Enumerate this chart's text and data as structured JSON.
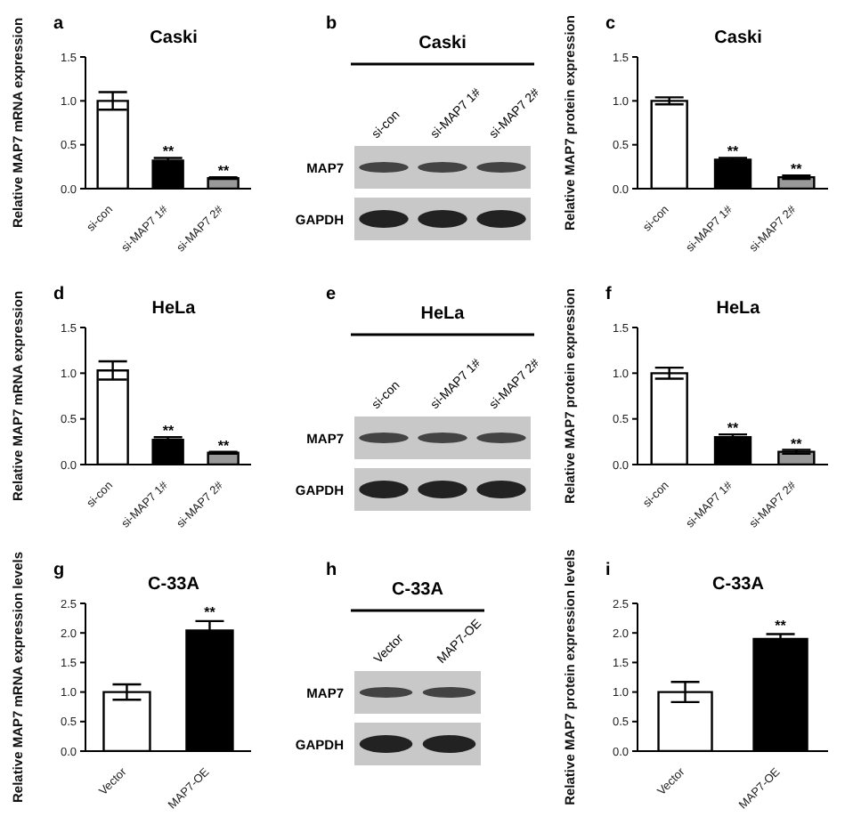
{
  "chart_data": [
    {
      "type": "bar",
      "title": "Caski",
      "ylabel": "Relative MAP7 mRNA expression",
      "categories": [
        "si-con",
        "si-MAP7 1#",
        "si-MAP7 2#"
      ],
      "values": [
        1.0,
        0.32,
        0.12
      ],
      "errors": [
        0.1,
        0.03,
        0.01
      ],
      "colors": [
        "#ffffff",
        "#000000",
        "#999999"
      ],
      "ylim": [
        0,
        1.5
      ],
      "yticks": [
        {
          "value": 0,
          "label": "0.0"
        },
        {
          "value": 0.5,
          "label": "0.5"
        },
        {
          "value": 1,
          "label": "1.0"
        },
        {
          "value": 1.5,
          "label": "1.5"
        }
      ],
      "annotations": [
        "a",
        {
          "text": "**",
          "x": "si-MAP7 1#",
          "y": 0.37
        },
        {
          "text": "**",
          "x": "si-MAP7 2#",
          "y": 0.15
        }
      ]
    },
    {
      "type": "other",
      "title": "Caski",
      "categories": [
        "si-con",
        "si-MAP7 1#",
        "si-MAP7 2#"
      ],
      "annotations": [
        "b",
        "MAP7",
        "GAPDH"
      ]
    },
    {
      "type": "bar",
      "title": "Caski",
      "ylabel": "Relative MAP7 protein expression",
      "categories": [
        "si-con",
        "si-MAP7 1#",
        "si-MAP7 2#"
      ],
      "values": [
        1.0,
        0.33,
        0.13
      ],
      "errors": [
        0.04,
        0.02,
        0.02
      ],
      "colors": [
        "#ffffff",
        "#000000",
        "#999999"
      ],
      "ylim": [
        0,
        1.5
      ],
      "yticks": [
        {
          "value": 0,
          "label": "0.0"
        },
        {
          "value": 0.5,
          "label": "0.5"
        },
        {
          "value": 1,
          "label": "1.0"
        },
        {
          "value": 1.5,
          "label": "1.5"
        }
      ],
      "annotations": [
        "c",
        {
          "text": "**",
          "x": "si-MAP7 1#",
          "y": 0.37
        },
        {
          "text": "**",
          "x": "si-MAP7 2#",
          "y": 0.17
        }
      ]
    },
    {
      "type": "bar",
      "title": "HeLa",
      "ylabel": "Relative MAP7 mRNA expression",
      "categories": [
        "si-con",
        "si-MAP7 1#",
        "si-MAP7 2#"
      ],
      "values": [
        1.03,
        0.27,
        0.13
      ],
      "errors": [
        0.1,
        0.03,
        0.01
      ],
      "colors": [
        "#ffffff",
        "#000000",
        "#999999"
      ],
      "ylim": [
        0,
        1.5
      ],
      "yticks": [
        {
          "value": 0,
          "label": "0.0"
        },
        {
          "value": 0.5,
          "label": "0.5"
        },
        {
          "value": 1,
          "label": "1.0"
        },
        {
          "value": 1.5,
          "label": "1.5"
        }
      ],
      "annotations": [
        "d",
        {
          "text": "**",
          "x": "si-MAP7 1#",
          "y": 0.32
        },
        {
          "text": "**",
          "x": "si-MAP7 2#",
          "y": 0.16
        }
      ]
    },
    {
      "type": "other",
      "title": "HeLa",
      "categories": [
        "si-con",
        "si-MAP7 1#",
        "si-MAP7 2#"
      ],
      "annotations": [
        "e",
        "MAP7",
        "GAPDH"
      ]
    },
    {
      "type": "bar",
      "title": "HeLa",
      "ylabel": "Relative MAP7 protein expression",
      "categories": [
        "si-con",
        "si-MAP7 1#",
        "si-MAP7 2#"
      ],
      "values": [
        1.0,
        0.3,
        0.14
      ],
      "errors": [
        0.06,
        0.03,
        0.02
      ],
      "colors": [
        "#ffffff",
        "#000000",
        "#999999"
      ],
      "ylim": [
        0,
        1.5
      ],
      "yticks": [
        {
          "value": 0,
          "label": "0.0"
        },
        {
          "value": 0.5,
          "label": "0.5"
        },
        {
          "value": 1,
          "label": "1.0"
        },
        {
          "value": 1.5,
          "label": "1.5"
        }
      ],
      "annotations": [
        "f",
        {
          "text": "**",
          "x": "si-MAP7 1#",
          "y": 0.35
        },
        {
          "text": "**",
          "x": "si-MAP7 2#",
          "y": 0.18
        }
      ]
    },
    {
      "type": "bar",
      "title": "C-33A",
      "ylabel": "Relative MAP7 mRNA expression levels",
      "categories": [
        "Vector",
        "MAP7-OE"
      ],
      "values": [
        1.0,
        2.04
      ],
      "errors": [
        0.13,
        0.16
      ],
      "colors": [
        "#ffffff",
        "#000000"
      ],
      "ylim": [
        0,
        2.5
      ],
      "yticks": [
        {
          "value": 0,
          "label": "0.0"
        },
        {
          "value": 0.5,
          "label": "0.5"
        },
        {
          "value": 1,
          "label": "1.0"
        },
        {
          "value": 1.5,
          "label": "1.5"
        },
        {
          "value": 2,
          "label": "2.0"
        },
        {
          "value": 2.5,
          "label": "2.5"
        }
      ],
      "annotations": [
        "g",
        {
          "text": "**",
          "x": "MAP7-OE",
          "y": 2.27
        }
      ]
    },
    {
      "type": "other",
      "title": "C-33A",
      "categories": [
        "Vector",
        "MAP7-OE"
      ],
      "annotations": [
        "h",
        "MAP7",
        "GAPDH"
      ]
    },
    {
      "type": "bar",
      "title": "C-33A",
      "ylabel": "Relative MAP7 protein expression levels",
      "categories": [
        "Vector",
        "MAP7-OE"
      ],
      "values": [
        1.0,
        1.9
      ],
      "errors": [
        0.17,
        0.08
      ],
      "colors": [
        "#ffffff",
        "#000000"
      ],
      "ylim": [
        0,
        2.5
      ],
      "yticks": [
        {
          "value": 0,
          "label": "0.0"
        },
        {
          "value": 0.5,
          "label": "0.5"
        },
        {
          "value": 1,
          "label": "1.0"
        },
        {
          "value": 1.5,
          "label": "1.5"
        },
        {
          "value": 2,
          "label": "2.0"
        },
        {
          "value": 2.5,
          "label": "2.5"
        }
      ],
      "annotations": [
        "i",
        {
          "text": "**",
          "x": "MAP7-OE",
          "y": 2.05
        }
      ]
    }
  ]
}
